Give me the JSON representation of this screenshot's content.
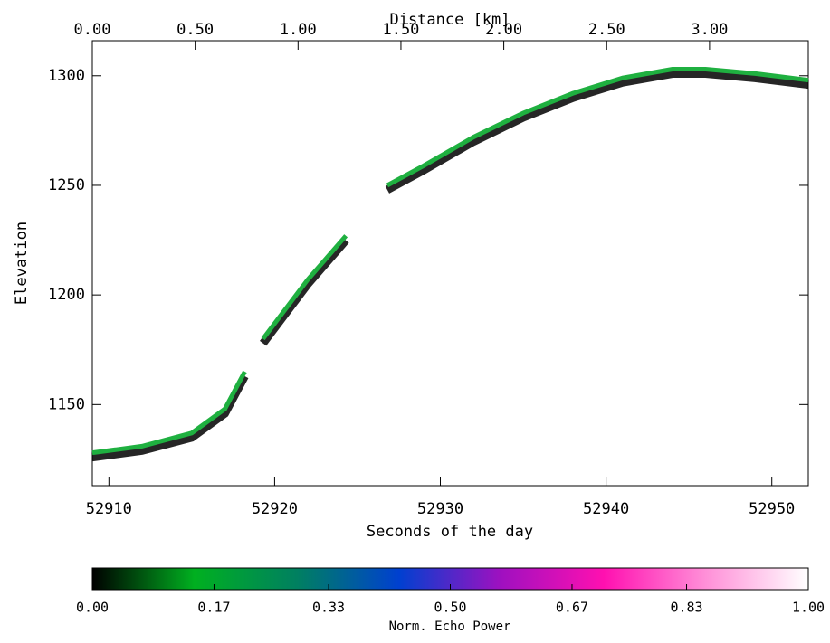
{
  "chart_data": {
    "type": "line",
    "xlabel": "Seconds of the day",
    "x2label": "Distance [km]",
    "ylabel": "Elevation",
    "x": [
      52909,
      52912,
      52915,
      52917,
      52918.2,
      null,
      52919.3,
      52922,
      52924.3,
      null,
      52926.8,
      52929,
      52932,
      52935,
      52938,
      52941,
      52944,
      52946,
      52949,
      52952.2
    ],
    "values": [
      1128,
      1131,
      1137,
      1148,
      1165,
      null,
      1180,
      1207,
      1227,
      null,
      1250,
      1259,
      1272,
      1283,
      1292,
      1299,
      1303,
      1303,
      1301,
      1298
    ],
    "color": "#1fb040",
    "xlim": [
      52909,
      52952.2
    ],
    "xticks": [
      52910,
      52920,
      52930,
      52940,
      52950
    ],
    "x2lim": [
      0,
      3.48
    ],
    "x2ticks": [
      {
        "value": 0,
        "label": "0.00"
      },
      {
        "value": 0.5,
        "label": "0.50"
      },
      {
        "value": 1,
        "label": "1.00"
      },
      {
        "value": 1.5,
        "label": "1.50"
      },
      {
        "value": 2,
        "label": "2.00"
      },
      {
        "value": 2.5,
        "label": "2.50"
      },
      {
        "value": 3,
        "label": "3.00"
      }
    ],
    "ylim": [
      1113,
      1316
    ],
    "yticks": [
      1150,
      1200,
      1250,
      1300
    ],
    "colorbar": {
      "label": "Norm. Echo Power",
      "lim": [
        0,
        1
      ],
      "ticks": [
        {
          "value": 0,
          "label": "0.00"
        },
        {
          "value": 0.17,
          "label": "0.17"
        },
        {
          "value": 0.33,
          "label": "0.33"
        },
        {
          "value": 0.5,
          "label": "0.50"
        },
        {
          "value": 0.67,
          "label": "0.67"
        },
        {
          "value": 0.83,
          "label": "0.83"
        },
        {
          "value": 1,
          "label": "1.00"
        }
      ],
      "colors": [
        "#000000",
        "#00b020",
        "#008060",
        "#0040d0",
        "#a010c0",
        "#ff10b0",
        "#ff90d8",
        "#ffffff"
      ]
    }
  }
}
